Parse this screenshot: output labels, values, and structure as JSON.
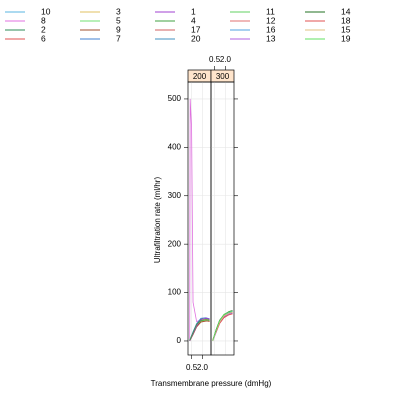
{
  "chart_data": {
    "type": "line",
    "xlabel": "Transmembrane pressure (dmHg)",
    "ylabel": "Ultrafiltration rate (ml/hr)",
    "strips": [
      "200",
      "300"
    ],
    "xlim": [
      0,
      3.2
    ],
    "xticks": [
      0.5,
      {
        "value": 2,
        "label": "2.0"
      }
    ],
    "ylim": [
      -29,
      535
    ],
    "yticks": [
      0,
      100,
      200,
      300,
      400,
      500
    ],
    "grid": true,
    "series": [
      {
        "name": "10",
        "color": "#5ab4e0",
        "panel": 0,
        "x": [
          0.24,
          0.7,
          1.2,
          1.8,
          2.5,
          3.0
        ],
        "values": [
          1,
          15,
          32,
          42,
          44,
          43
        ]
      },
      {
        "name": "8",
        "color": "#e070e0",
        "panel": 0,
        "x": [
          0.24,
          0.3,
          0.5,
          0.7,
          1.2,
          2.0
        ],
        "values": [
          0,
          500,
          440,
          80,
          40,
          45
        ]
      },
      {
        "name": "2",
        "color": "#2e8b57",
        "panel": 0,
        "x": [
          0.24,
          0.7,
          1.2,
          1.8,
          2.5,
          3.0
        ],
        "values": [
          2,
          18,
          35,
          45,
          46,
          45
        ]
      },
      {
        "name": "6",
        "color": "#e05050",
        "panel": 0,
        "x": [
          0.24,
          0.7,
          1.2,
          1.8,
          2.5,
          3.0
        ],
        "values": [
          0,
          14,
          30,
          40,
          42,
          40
        ]
      },
      {
        "name": "3",
        "color": "#e0c060",
        "panel": 0,
        "x": [
          0.24,
          0.7,
          1.2,
          1.8,
          2.5,
          3.0
        ],
        "values": [
          1,
          16,
          33,
          43,
          45,
          44
        ]
      },
      {
        "name": "5",
        "color": "#70e070",
        "panel": 0,
        "x": [
          0.24,
          0.7,
          1.2,
          1.8,
          2.5,
          3.0
        ],
        "values": [
          2,
          17,
          34,
          41,
          43,
          42
        ]
      },
      {
        "name": "9",
        "color": "#a0522d",
        "panel": 0,
        "x": [
          0.24,
          0.7,
          1.2,
          1.8,
          2.5,
          3.0
        ],
        "values": [
          0,
          13,
          29,
          39,
          41,
          41
        ]
      },
      {
        "name": "7",
        "color": "#4080d0",
        "panel": 0,
        "x": [
          0.24,
          0.7,
          1.2,
          1.8,
          2.5,
          3.0
        ],
        "values": [
          1,
          19,
          36,
          47,
          48,
          46
        ]
      },
      {
        "name": "1",
        "color": "#a040d0",
        "panel": 0,
        "x": [
          0.24,
          0.7,
          1.2,
          1.8,
          2.5,
          3.0
        ],
        "values": [
          0,
          15,
          31,
          44,
          47,
          45
        ]
      },
      {
        "name": "4",
        "color": "#40a040",
        "panel": 0,
        "x": [
          0.24,
          0.7,
          1.2,
          1.8,
          2.5,
          3.0
        ],
        "values": [
          1,
          17,
          34,
          42,
          44,
          43
        ]
      },
      {
        "name": "17",
        "color": "#d06060",
        "panel": 1,
        "x": [
          0.24,
          0.7,
          1.2,
          1.8,
          2.5,
          3.0
        ],
        "values": [
          2,
          20,
          40,
          52,
          58,
          60
        ]
      },
      {
        "name": "20",
        "color": "#4090c0",
        "panel": 1,
        "x": [
          0.24,
          0.7,
          1.2,
          1.8,
          2.5,
          3.0
        ],
        "values": [
          1,
          18,
          38,
          50,
          56,
          58
        ]
      },
      {
        "name": "11",
        "color": "#60d060",
        "panel": 1,
        "x": [
          0.24,
          0.7,
          1.2,
          1.8,
          2.5,
          3.0
        ],
        "values": [
          0,
          22,
          42,
          55,
          60,
          62
        ]
      },
      {
        "name": "12",
        "color": "#e07070",
        "panel": 1,
        "x": [
          0.24,
          0.7,
          1.2,
          1.8,
          2.5,
          3.0
        ],
        "values": [
          2,
          19,
          39,
          51,
          57,
          59
        ]
      },
      {
        "name": "16",
        "color": "#50a0e0",
        "panel": 1,
        "x": [
          0.24,
          0.7,
          1.2,
          1.8,
          2.5,
          3.0
        ],
        "values": [
          1,
          21,
          41,
          53,
          59,
          61
        ]
      },
      {
        "name": "13",
        "color": "#b060e0",
        "panel": 1,
        "x": [
          0.24,
          0.7,
          1.2,
          1.8,
          2.5,
          3.0
        ],
        "values": [
          0,
          17,
          37,
          49,
          55,
          57
        ]
      },
      {
        "name": "14",
        "color": "#207020",
        "panel": 1,
        "x": [
          0.24,
          0.7,
          1.2,
          1.8,
          2.5,
          3.0
        ],
        "values": [
          1,
          23,
          43,
          54,
          61,
          63
        ]
      },
      {
        "name": "18",
        "color": "#e05050",
        "panel": 1,
        "x": [
          0.24,
          0.7,
          1.2,
          1.8,
          2.5,
          3.0
        ],
        "values": [
          2,
          18,
          36,
          48,
          54,
          56
        ]
      },
      {
        "name": "15",
        "color": "#e0c080",
        "panel": 1,
        "x": [
          0.24,
          0.7,
          1.2,
          1.8,
          2.5,
          3.0
        ],
        "values": [
          0,
          20,
          39,
          52,
          57,
          59
        ]
      },
      {
        "name": "19",
        "color": "#60e060",
        "panel": 1,
        "x": [
          0.24,
          0.7,
          1.2,
          1.8,
          2.5,
          3.0
        ],
        "values": [
          1,
          21,
          42,
          54,
          60,
          62
        ]
      }
    ]
  }
}
